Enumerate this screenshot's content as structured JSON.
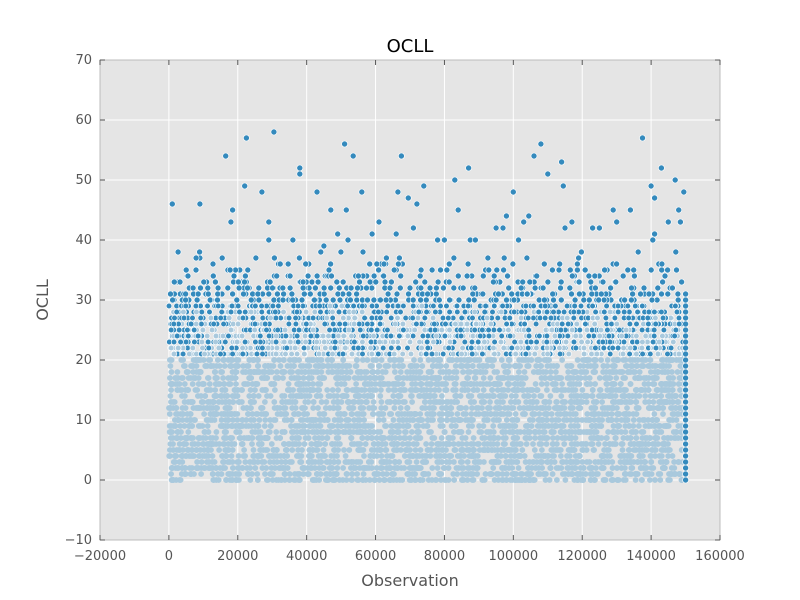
{
  "chart_data": {
    "type": "scatter",
    "title": "OCLL",
    "xlabel": "Observation",
    "ylabel": "OCLL",
    "xlim": [
      -20000,
      160000
    ],
    "ylim": [
      -10,
      70
    ],
    "xticks": [
      -20000,
      0,
      20000,
      40000,
      60000,
      80000,
      100000,
      120000,
      140000,
      160000
    ],
    "yticks": [
      -10,
      0,
      10,
      20,
      30,
      40,
      50,
      60,
      70
    ],
    "xtick_labels": [
      "−20000",
      "0",
      "20000",
      "40000",
      "60000",
      "80000",
      "100000",
      "120000",
      "140000",
      "160000"
    ],
    "ytick_labels": [
      "−10",
      "0",
      "10",
      "20",
      "30",
      "40",
      "50",
      "60",
      "70"
    ],
    "grid": true,
    "n_observations": 150000,
    "series": [
      {
        "dense_band": {
          "x_range": [
            0,
            149500
          ],
          "y_range": [
            0,
            29
          ],
          "note": "observations densely cover integer OCLL values 0–29 across the whole x range"
        },
        "dense_mid": {
          "x_range": [
            0,
            149500
          ],
          "y_values": [
            26,
            27,
            28,
            29,
            30,
            31,
            32,
            33,
            34,
            35
          ]
        },
        "tail_x": 150000,
        "tail_y_range": [
          0,
          31
        ],
        "outliers": [
          {
            "x": 1000,
            "y": 46
          },
          {
            "x": 9000,
            "y": 46
          },
          {
            "x": 16500,
            "y": 54
          },
          {
            "x": 22500,
            "y": 57
          },
          {
            "x": 22000,
            "y": 49
          },
          {
            "x": 18500,
            "y": 45
          },
          {
            "x": 18000,
            "y": 43
          },
          {
            "x": 27000,
            "y": 48
          },
          {
            "x": 29000,
            "y": 43
          },
          {
            "x": 29000,
            "y": 40
          },
          {
            "x": 30500,
            "y": 58
          },
          {
            "x": 38000,
            "y": 52
          },
          {
            "x": 38000,
            "y": 51
          },
          {
            "x": 36000,
            "y": 40
          },
          {
            "x": 43000,
            "y": 48
          },
          {
            "x": 45000,
            "y": 39
          },
          {
            "x": 47000,
            "y": 45
          },
          {
            "x": 49000,
            "y": 41
          },
          {
            "x": 51000,
            "y": 56
          },
          {
            "x": 51500,
            "y": 45
          },
          {
            "x": 53500,
            "y": 54
          },
          {
            "x": 52000,
            "y": 40
          },
          {
            "x": 56000,
            "y": 48
          },
          {
            "x": 59000,
            "y": 41
          },
          {
            "x": 61000,
            "y": 43
          },
          {
            "x": 66000,
            "y": 41
          },
          {
            "x": 66500,
            "y": 48
          },
          {
            "x": 67500,
            "y": 54
          },
          {
            "x": 69500,
            "y": 47
          },
          {
            "x": 71000,
            "y": 42
          },
          {
            "x": 72000,
            "y": 46
          },
          {
            "x": 74000,
            "y": 49
          },
          {
            "x": 78000,
            "y": 40
          },
          {
            "x": 80000,
            "y": 40
          },
          {
            "x": 83000,
            "y": 50
          },
          {
            "x": 84000,
            "y": 45
          },
          {
            "x": 87000,
            "y": 52
          },
          {
            "x": 87500,
            "y": 40
          },
          {
            "x": 89000,
            "y": 40
          },
          {
            "x": 95000,
            "y": 42
          },
          {
            "x": 97000,
            "y": 42
          },
          {
            "x": 98000,
            "y": 44
          },
          {
            "x": 100000,
            "y": 48
          },
          {
            "x": 101500,
            "y": 40
          },
          {
            "x": 103000,
            "y": 43
          },
          {
            "x": 104500,
            "y": 44
          },
          {
            "x": 106000,
            "y": 54
          },
          {
            "x": 108000,
            "y": 56
          },
          {
            "x": 110000,
            "y": 51
          },
          {
            "x": 114000,
            "y": 53
          },
          {
            "x": 114500,
            "y": 49
          },
          {
            "x": 115000,
            "y": 42
          },
          {
            "x": 117000,
            "y": 43
          },
          {
            "x": 123000,
            "y": 42
          },
          {
            "x": 125000,
            "y": 42
          },
          {
            "x": 129000,
            "y": 45
          },
          {
            "x": 130000,
            "y": 43
          },
          {
            "x": 134000,
            "y": 45
          },
          {
            "x": 137500,
            "y": 57
          },
          {
            "x": 140000,
            "y": 49
          },
          {
            "x": 141000,
            "y": 47
          },
          {
            "x": 141000,
            "y": 41
          },
          {
            "x": 140500,
            "y": 40
          },
          {
            "x": 143000,
            "y": 52
          },
          {
            "x": 145000,
            "y": 43
          },
          {
            "x": 147000,
            "y": 50
          },
          {
            "x": 148000,
            "y": 45
          },
          {
            "x": 148500,
            "y": 43
          },
          {
            "x": 149500,
            "y": 48
          }
        ]
      }
    ]
  },
  "colors": {
    "marker": "#348ABD",
    "marker_light": "#A9C9DD",
    "marker_edge": "#ffffff",
    "plot_bg": "#E5E5E5",
    "grid": "#ffffff",
    "axis": "#bcbcbc"
  }
}
